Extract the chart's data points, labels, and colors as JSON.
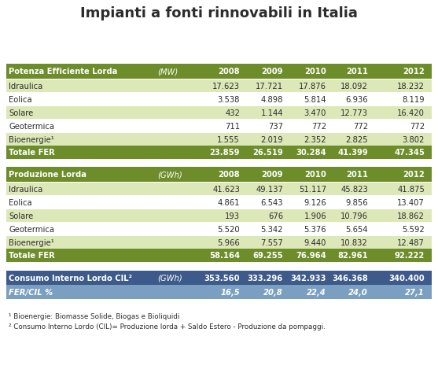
{
  "title": "Impianti a fonti rinnovabili in Italia",
  "background_color": "#ffffff",
  "olive_green": "#6d8c2a",
  "light_green1": "#dde8b8",
  "light_green2": "#eaf2d0",
  "white_row": "#ffffff",
  "totale_row_color": "#6d8c2a",
  "blue_header": "#3d5a8a",
  "blue_row2": "#7a9fc0",
  "text_white": "#ffffff",
  "text_dark": "#2c2c2c",
  "table1_header": [
    "Potenza Efficiente Lorda",
    "(MW)",
    "2008",
    "2009",
    "2010",
    "2011",
    "2012"
  ],
  "table1_rows": [
    [
      "Idraulica",
      "",
      "17.623",
      "17.721",
      "17.876",
      "18.092",
      "18.232"
    ],
    [
      "Eolica",
      "",
      "3.538",
      "4.898",
      "5.814",
      "6.936",
      "8.119"
    ],
    [
      "Solare",
      "",
      "432",
      "1.144",
      "3.470",
      "12.773",
      "16.420"
    ],
    [
      "Geotermica",
      "",
      "711",
      "737",
      "772",
      "772",
      "772"
    ],
    [
      "Bioenergie¹",
      "",
      "1.555",
      "2.019",
      "2.352",
      "2.825",
      "3.802"
    ]
  ],
  "table1_total": [
    "Totale FER",
    "",
    "23.859",
    "26.519",
    "30.284",
    "41.399",
    "47.345"
  ],
  "table2_header": [
    "Produzione Lorda",
    "(GWh)",
    "2008",
    "2009",
    "2010",
    "2011",
    "2012"
  ],
  "table2_rows": [
    [
      "Idraulica",
      "",
      "41.623",
      "49.137",
      "51.117",
      "45.823",
      "41.875"
    ],
    [
      "Eolica",
      "",
      "4.861",
      "6.543",
      "9.126",
      "9.856",
      "13.407"
    ],
    [
      "Solare",
      "",
      "193",
      "676",
      "1.906",
      "10.796",
      "18.862"
    ],
    [
      "Geotermica",
      "",
      "5.520",
      "5.342",
      "5.376",
      "5.654",
      "5.592"
    ],
    [
      "Bioenergie¹",
      "",
      "5.966",
      "7.557",
      "9.440",
      "10.832",
      "12.487"
    ]
  ],
  "table2_total": [
    "Totale FER",
    "",
    "58.164",
    "69.255",
    "76.964",
    "82.961",
    "92.222"
  ],
  "table3_row1": [
    "Consumo Interno Lordo CIL²",
    "(GWh)",
    "353.560",
    "333.296",
    "342.933",
    "346.368",
    "340.400"
  ],
  "table3_row2": [
    "FER/CIL %",
    "",
    "16,5",
    "20,8",
    "22,4",
    "24,0",
    "27,1"
  ],
  "footnote1": "¹ Bioenergie: Biomasse Solide, Biogas e Bioliquidi",
  "footnote2": "² Consumo Interno Lordo (CIL)= Produzione lorda + Saldo Estero - Produzione da pompaggi."
}
